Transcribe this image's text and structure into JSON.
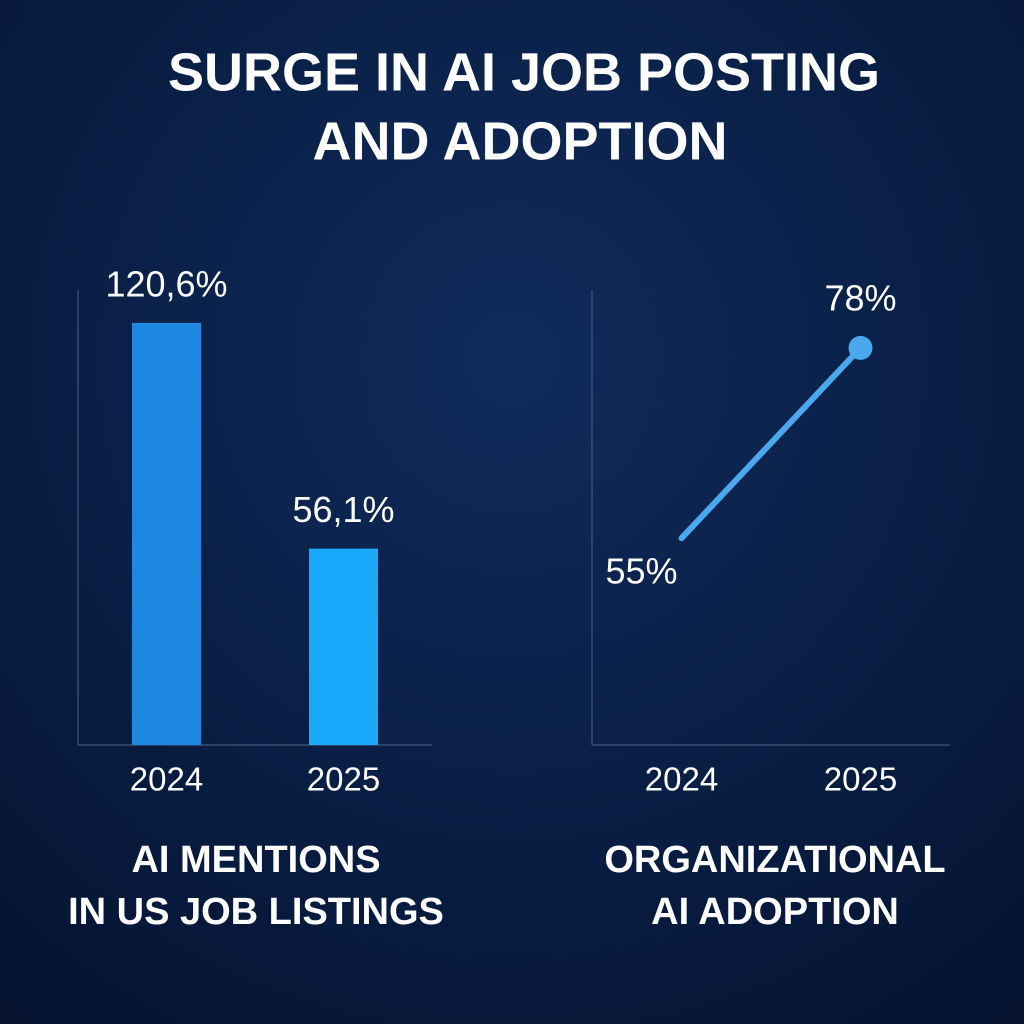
{
  "title": [
    "SURGE IN AI JOB POSTING",
    "AND ADOPTION"
  ],
  "chart_data": [
    {
      "type": "bar",
      "title": [
        "AI MENTIONS",
        "IN US JOB LISTINGS"
      ],
      "categories": [
        "2024",
        "2025"
      ],
      "values": [
        120.6,
        56.1
      ],
      "value_labels": [
        "120,6%",
        "56,1%"
      ],
      "colors": [
        "#1e88e0",
        "#1ba9fb"
      ],
      "ylim": [
        0,
        130
      ]
    },
    {
      "type": "line",
      "title": [
        "ORGANIZATIONAL",
        "AI ADOPTION"
      ],
      "categories": [
        "2024",
        "2025"
      ],
      "values": [
        55,
        78
      ],
      "value_labels": [
        "55%",
        "78%"
      ],
      "color": "#4aa9ee",
      "ylim": [
        30,
        85
      ]
    }
  ]
}
